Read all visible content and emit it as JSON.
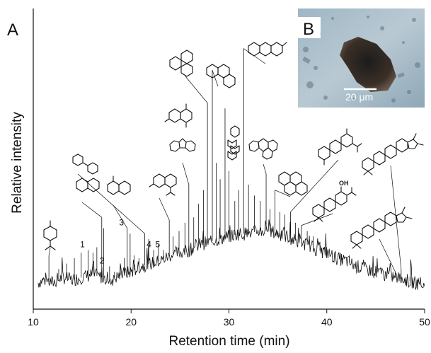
{
  "panel_labels": {
    "main": "A",
    "inset": "B"
  },
  "inset": {
    "scale_bar_label": "20 μm",
    "description_icon": "micrograph-of-dark-particle"
  },
  "chart_data": {
    "type": "line",
    "title": "",
    "xlabel": "Retention time (min)",
    "ylabel": "Relative intensity",
    "xlim": [
      10,
      50
    ],
    "ylim": [
      0,
      100
    ],
    "xticks": [
      10,
      20,
      30,
      40,
      50
    ],
    "grid": false,
    "legend": "none",
    "series": [
      {
        "baseline": [
          [
            10,
            3
          ],
          [
            11,
            5
          ],
          [
            12,
            4
          ],
          [
            13,
            6
          ],
          [
            14,
            5
          ],
          [
            15,
            6
          ],
          [
            16,
            7
          ],
          [
            17,
            6
          ],
          [
            18,
            5
          ],
          [
            19,
            7
          ],
          [
            20,
            8
          ],
          [
            21,
            10
          ],
          [
            22,
            11
          ],
          [
            23,
            12
          ],
          [
            24,
            14
          ],
          [
            25,
            15
          ],
          [
            26,
            16
          ],
          [
            27,
            18
          ],
          [
            28,
            19
          ],
          [
            29,
            20
          ],
          [
            30,
            21
          ],
          [
            31,
            22
          ],
          [
            32,
            22
          ],
          [
            33,
            23
          ],
          [
            34,
            23
          ],
          [
            35,
            22
          ],
          [
            36,
            21
          ],
          [
            37,
            19
          ],
          [
            38,
            18
          ],
          [
            39,
            16
          ],
          [
            40,
            15
          ],
          [
            41,
            13
          ],
          [
            42,
            12
          ],
          [
            43,
            10
          ],
          [
            44,
            9
          ],
          [
            45,
            8
          ],
          [
            46,
            7
          ],
          [
            47,
            6
          ],
          [
            48,
            5
          ],
          [
            49,
            4
          ],
          [
            50,
            3
          ]
        ],
        "peaks": [
          [
            11.6,
            14
          ],
          [
            12.6,
            9
          ],
          [
            13.4,
            11
          ],
          [
            14.2,
            13
          ],
          [
            14.9,
            15
          ],
          [
            15.6,
            16
          ],
          [
            16.1,
            15
          ],
          [
            16.5,
            17
          ],
          [
            17.0,
            28
          ],
          [
            17.2,
            24
          ],
          [
            17.8,
            10
          ],
          [
            18.3,
            8
          ],
          [
            18.9,
            11
          ],
          [
            19.3,
            13
          ],
          [
            19.6,
            24
          ],
          [
            19.9,
            22
          ],
          [
            20.3,
            14
          ],
          [
            20.8,
            13
          ],
          [
            21.4,
            22
          ],
          [
            21.8,
            20
          ],
          [
            22.3,
            16
          ],
          [
            22.8,
            18
          ],
          [
            23.3,
            16
          ],
          [
            23.9,
            27
          ],
          [
            24.3,
            21
          ],
          [
            24.9,
            23
          ],
          [
            25.5,
            26
          ],
          [
            25.9,
            40
          ],
          [
            26.4,
            28
          ],
          [
            26.9,
            33
          ],
          [
            27.4,
            38
          ],
          [
            27.8,
            70
          ],
          [
            28.3,
            82
          ],
          [
            28.7,
            48
          ],
          [
            29.1,
            42
          ],
          [
            29.6,
            68
          ],
          [
            30.0,
            45
          ],
          [
            30.6,
            34
          ],
          [
            31.0,
            38
          ],
          [
            31.5,
            90
          ],
          [
            32.0,
            40
          ],
          [
            32.6,
            36
          ],
          [
            33.2,
            34
          ],
          [
            33.8,
            44
          ],
          [
            34.2,
            31
          ],
          [
            34.7,
            38
          ],
          [
            35.2,
            30
          ],
          [
            35.7,
            29
          ],
          [
            36.3,
            30
          ],
          [
            36.8,
            26
          ],
          [
            37.4,
            25
          ],
          [
            38.0,
            23
          ],
          [
            38.6,
            21
          ],
          [
            39.3,
            19
          ],
          [
            40.0,
            17
          ],
          [
            40.8,
            15
          ],
          [
            41.6,
            13
          ],
          [
            42.3,
            14
          ],
          [
            43.2,
            10
          ],
          [
            44.1,
            9
          ],
          [
            45.0,
            8
          ],
          [
            46.0,
            7
          ],
          [
            47.0,
            8
          ],
          [
            47.6,
            9
          ],
          [
            48.5,
            6
          ],
          [
            49.3,
            5
          ]
        ]
      }
    ],
    "annotations": {
      "numbers": [
        {
          "label": "1",
          "x": 15.6
        },
        {
          "label": "2",
          "x": 17.6
        },
        {
          "label": "3",
          "x": 19.6
        },
        {
          "label": "4",
          "x": 22.4
        },
        {
          "label": "5",
          "x": 23.3
        }
      ],
      "structures": [
        {
          "icon": "p-cymene-structure-icon",
          "peak_x": 11.6
        },
        {
          "icon": "naphthalene-structure-icon",
          "peak_x": 17.0
        },
        {
          "icon": "biphenyl-structure-icon",
          "peak_x": 21.4
        },
        {
          "icon": "methylnaphthalene-structure-icon",
          "peak_x": 19.6
        },
        {
          "icon": "cadalene-structure-icon",
          "peak_x": 23.9
        },
        {
          "icon": "fluorene-structure-icon",
          "peak_x": 25.9
        },
        {
          "icon": "phenanthrene-structure-icon",
          "peak_x": 27.8
        },
        {
          "icon": "anthracene-structure-icon",
          "peak_x": 28.3
        },
        {
          "icon": "methylanthracene-structure-icon",
          "peak_x": 31.5
        },
        {
          "icon": "fluoranthene-structure-icon",
          "peak_x": 33.8
        },
        {
          "icon": "pyrene-structure-icon",
          "peak_x": 34.7
        },
        {
          "icon": "retene-structure-icon",
          "peak_x": 36.3
        },
        {
          "icon": "ferruginol-structure-icon",
          "peak_x": 37.4
        },
        {
          "icon": "hopane-structure-icon",
          "peak_x": 47.6
        },
        {
          "icon": "triterpane-structure-icon",
          "peak_x": 47.0
        }
      ]
    }
  }
}
